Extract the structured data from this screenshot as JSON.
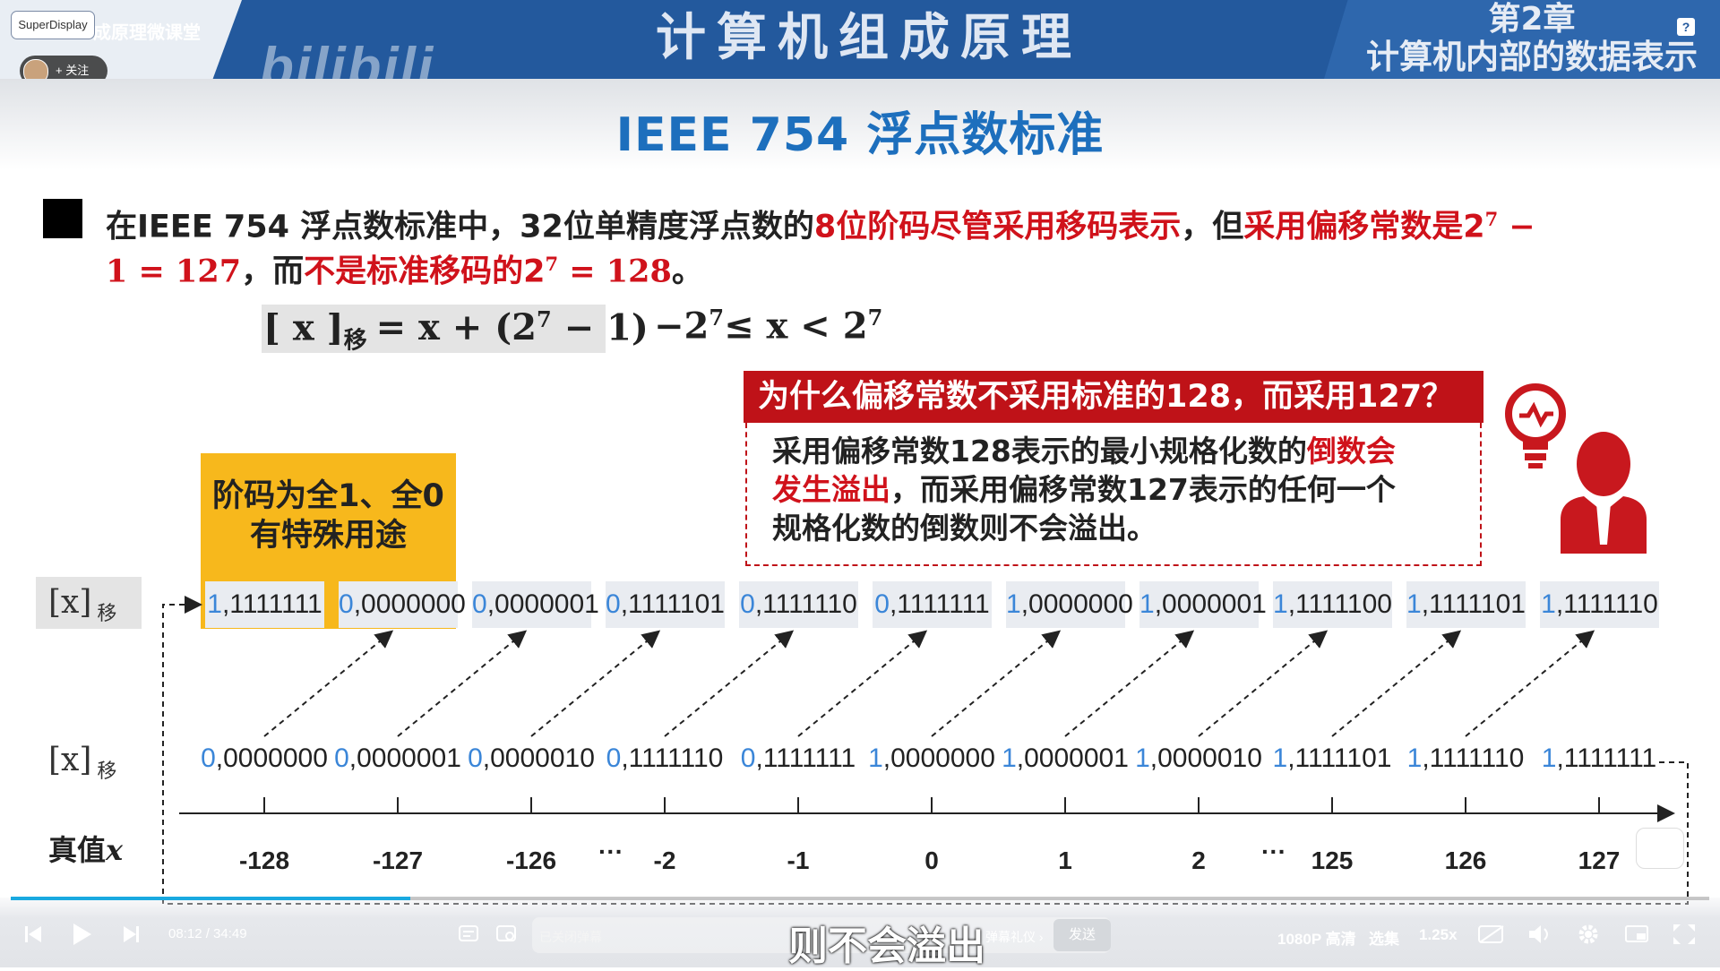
{
  "header": {
    "superdisplay_badge": "SuperDisplay",
    "channel_title": "成原理微课堂",
    "follow_label": "+ 关注",
    "watermark": "bilibili",
    "course_title": "计算机组成原理",
    "chapter_number": "第2章",
    "chapter_name": "计算机内部的数据表示",
    "help_label": "?"
  },
  "slide": {
    "title": "IEEE 754 浮点数标准",
    "statement": {
      "p1": "在IEEE 754 浮点数标准中，32位单精度浮点数的",
      "p2_red": "8位阶码尽管采用移码表示",
      "p3": "，但",
      "p4_red": "采用偏移常数是2",
      "p4_sup": "7",
      "p4_tail": " −",
      "l2_red1": "1 = 127",
      "l2_mid": "，而",
      "l2_red2": "不是标准移码的2",
      "l2_sup": "7",
      "l2_red3": " = 128",
      "l2_end": "。"
    },
    "formula": {
      "lhs_open": "[ x ]",
      "lhs_sub": "移",
      "rhs": "= x + (2",
      "rhs_sup": "7",
      "rhs_end": " − 1)",
      "range": "−2",
      "range_sup": "7",
      "range_mid": "≤ x < 2",
      "range_sup2": "7"
    },
    "callout": {
      "question": "为什么偏移常数不采用标准的128，而采用127？",
      "a1a": "采用偏移常数128表示的最小规格化数的",
      "a1b_red": "倒数会",
      "a2a_red": "发生溢出",
      "a2b": "，而采用偏移常数127表示的任何一个",
      "a3": "规格化数的倒数则不会溢出。"
    },
    "special": {
      "line1": "阶码为全1、全0",
      "line2": "有特殊用途"
    },
    "row_labels": {
      "top": "[x]",
      "top_sub": "移",
      "bottom": "[x]",
      "bottom_sub": "移",
      "true_value": "真值",
      "true_var": "x"
    },
    "top_row": [
      {
        "s": "1",
        "v": ",1111111"
      },
      {
        "s": "0",
        "v": ",0000000"
      },
      {
        "s": "0",
        "v": ",0000001"
      },
      {
        "s": "0",
        "v": ",1111101"
      },
      {
        "s": "0",
        "v": ",1111110"
      },
      {
        "s": "0",
        "v": ",1111111"
      },
      {
        "s": "1",
        "v": ",0000000"
      },
      {
        "s": "1",
        "v": ",0000001"
      },
      {
        "s": "1",
        "v": ",1111100"
      },
      {
        "s": "1",
        "v": ",1111101"
      },
      {
        "s": "1",
        "v": ",1111110"
      }
    ],
    "bottom_row": [
      {
        "s": "0",
        "v": ",0000000"
      },
      {
        "s": "0",
        "v": ",0000001"
      },
      {
        "s": "0",
        "v": ",0000010"
      },
      {
        "s": "0",
        "v": ",1111110"
      },
      {
        "s": "0",
        "v": ",1111111"
      },
      {
        "s": "1",
        "v": ",0000000"
      },
      {
        "s": "1",
        "v": ",0000001"
      },
      {
        "s": "1",
        "v": ",0000010"
      },
      {
        "s": "1",
        "v": ",1111101"
      },
      {
        "s": "1",
        "v": ",1111110"
      },
      {
        "s": "1",
        "v": ",1111111"
      }
    ],
    "axis_values": [
      "-128",
      "-127",
      "-126",
      "-2",
      "-1",
      "0",
      "1",
      "2",
      "125",
      "126",
      "127"
    ],
    "ellipsis": "···"
  },
  "player": {
    "time": "08:12 / 34:49",
    "danmaku_placeholder": "已关闭弹幕",
    "gift_label": "弹幕礼仪 ›",
    "send_label": "发送",
    "subtitle": "则不会溢出",
    "quality": "1080P 高清",
    "episodes": "选集",
    "speed": "1.25x",
    "progress_fraction": 0.235
  }
}
